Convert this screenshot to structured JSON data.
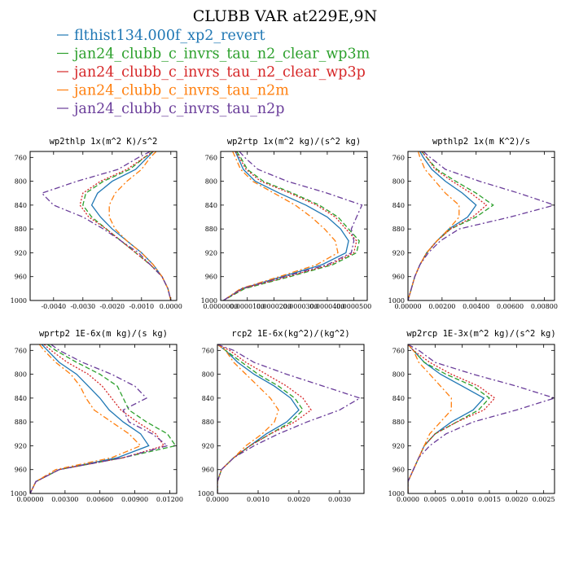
{
  "chart_data": {
    "title": "CLUBB VAR at229E,9N",
    "legend_position": "top",
    "series_styles": [
      {
        "name": "flthist134.000f_xp2_revert",
        "color": "#1f77b4",
        "dash": "solid"
      },
      {
        "name": "jan24_clubb_c_invrs_tau_n2_clear_wp3m",
        "color": "#2ca02c",
        "dash": "dashed"
      },
      {
        "name": "jan24_clubb_c_invrs_tau_n2_clear_wp3p",
        "color": "#d62728",
        "dash": "dotted"
      },
      {
        "name": "jan24_clubb_c_invrs_tau_n2m",
        "color": "#ff7f0e",
        "dash": "dashdot"
      },
      {
        "name": "jan24_clubb_c_invrs_tau_n2p",
        "color": "#6a3d9a",
        "dash": "dashdot"
      }
    ],
    "levels": [
      750,
      760,
      780,
      800,
      820,
      840,
      860,
      880,
      900,
      920,
      940,
      960,
      980,
      1000
    ],
    "panels": [
      {
        "type": "line",
        "title": "wp2thlp  1x(m^2 K)/s^2",
        "xlim": [
          -0.0048,
          0.0002
        ],
        "ylim": [
          750,
          1000
        ],
        "xticks": [
          -0.004,
          -0.003,
          -0.002,
          -0.001,
          0.0
        ],
        "xtick_labels": [
          "-0.0040",
          "-0.0030",
          "-0.0020",
          "-0.0010",
          "0.0000"
        ],
        "yticks": [
          760,
          800,
          840,
          880,
          920,
          960,
          1000
        ],
        "series": [
          {
            "values": [
              -0.0006,
              -0.0008,
              -0.0012,
              -0.002,
              -0.0025,
              -0.0027,
              -0.0024,
              -0.002,
              -0.0015,
              -0.001,
              -0.0006,
              -0.0003,
              -0.0001,
              0.0
            ]
          },
          {
            "values": [
              -0.0006,
              -0.0009,
              -0.0014,
              -0.0023,
              -0.0029,
              -0.003,
              -0.0027,
              -0.0022,
              -0.0017,
              -0.0012,
              -0.0007,
              -0.0003,
              -0.0001,
              0.0
            ]
          },
          {
            "values": [
              -0.0006,
              -0.0009,
              -0.0015,
              -0.0024,
              -0.003,
              -0.0031,
              -0.0028,
              -0.0022,
              -0.0017,
              -0.0012,
              -0.0007,
              -0.0003,
              -0.0001,
              0.0
            ]
          },
          {
            "values": [
              -0.0005,
              -0.0007,
              -0.001,
              -0.0015,
              -0.0019,
              -0.0021,
              -0.0021,
              -0.0019,
              -0.0015,
              -0.001,
              -0.0006,
              -0.0003,
              -0.0001,
              0.0
            ]
          },
          {
            "values": [
              -0.0007,
              -0.0011,
              -0.0018,
              -0.0032,
              -0.0044,
              -0.004,
              -0.003,
              -0.0023,
              -0.0017,
              -0.0011,
              -0.0007,
              -0.0003,
              -0.0001,
              0.0
            ]
          }
        ]
      },
      {
        "type": "line",
        "title": "wp2rtp  1x(m^2 kg)/(s^2 kg)",
        "xlim": [
          0.0,
          5.5e-05
        ],
        "ylim": [
          750,
          1000
        ],
        "xticks": [
          0.0,
          1e-05,
          2e-05,
          3e-05,
          4e-05,
          5e-05
        ],
        "xtick_labels": [
          "0.0000000",
          "0.0000100",
          "0.0000200",
          "0.0000300",
          "0.0000400",
          "0.0000500"
        ],
        "yticks": [
          760,
          800,
          840,
          880,
          920,
          960,
          1000
        ],
        "series": [
          {
            "values": [
              5.5e-06,
              6.5e-06,
              8.5e-06,
              1.3e-05,
              2.2e-05,
              3.2e-05,
              4e-05,
              4.5e-05,
              4.8e-05,
              4.7e-05,
              3.8e-05,
              2.3e-05,
              8e-06,
              1e-06
            ]
          },
          {
            "values": [
              6e-06,
              7.5e-06,
              1e-05,
              1.6e-05,
              2.7e-05,
              3.7e-05,
              4.4e-05,
              4.8e-05,
              5.2e-05,
              5.1e-05,
              4.2e-05,
              2.6e-05,
              9e-06,
              1e-06
            ]
          },
          {
            "values": [
              5.5e-06,
              7e-06,
              9.5e-06,
              1.5e-05,
              2.6e-05,
              3.6e-05,
              4.3e-05,
              4.7e-05,
              5.1e-05,
              5e-05,
              4.1e-05,
              2.5e-05,
              8.5e-06,
              1e-06
            ]
          },
          {
            "values": [
              4.5e-06,
              5.5e-06,
              7.5e-06,
              1.2e-05,
              2e-05,
              2.8e-05,
              3.4e-05,
              3.9e-05,
              4.3e-05,
              4.4e-05,
              3.6e-05,
              2.2e-05,
              7.5e-06,
              1e-06
            ]
          },
          {
            "values": [
              7e-06,
              9e-06,
              1.4e-05,
              2.5e-05,
              4e-05,
              5.3e-05,
              5.1e-05,
              4.9e-05,
              5e-05,
              4.9e-05,
              4e-05,
              2.4e-05,
              8e-06,
              1e-06
            ]
          }
        ]
      },
      {
        "type": "line",
        "title": "wpthlp2  1x(m K^2)/s",
        "xlim": [
          0.0,
          0.0086
        ],
        "ylim": [
          750,
          1000
        ],
        "xticks": [
          0.0,
          0.002,
          0.004,
          0.006,
          0.008
        ],
        "xtick_labels": [
          "0.00000",
          "0.00200",
          "0.00400",
          "0.00600",
          "0.00800"
        ],
        "yticks": [
          760,
          800,
          840,
          880,
          920,
          960,
          1000
        ],
        "series": [
          {
            "values": [
              0.0007,
              0.0009,
              0.0014,
              0.0022,
              0.0032,
              0.004,
              0.0035,
              0.0024,
              0.0017,
              0.0011,
              0.0007,
              0.0004,
              0.0002,
              0.0
            ]
          },
          {
            "values": [
              0.0008,
              0.0011,
              0.0017,
              0.0028,
              0.004,
              0.005,
              0.004,
              0.0025,
              0.0017,
              0.0011,
              0.0007,
              0.0004,
              0.0002,
              0.0
            ]
          },
          {
            "values": [
              0.0008,
              0.0011,
              0.0016,
              0.0026,
              0.0037,
              0.0046,
              0.0038,
              0.0025,
              0.0017,
              0.0011,
              0.0007,
              0.0004,
              0.0002,
              0.0
            ]
          },
          {
            "values": [
              0.0006,
              0.0007,
              0.001,
              0.0016,
              0.0022,
              0.003,
              0.003,
              0.0024,
              0.0017,
              0.0011,
              0.0007,
              0.0004,
              0.0002,
              0.0
            ]
          },
          {
            "values": [
              0.0009,
              0.0013,
              0.0022,
              0.0042,
              0.0065,
              0.0086,
              0.006,
              0.003,
              0.0019,
              0.0012,
              0.0007,
              0.0004,
              0.0002,
              0.0
            ]
          }
        ]
      },
      {
        "type": "line",
        "title": "wprtp2  1E-6x(m kg)/(s kg)",
        "xlim": [
          0.0,
          0.0126
        ],
        "ylim": [
          750,
          1000
        ],
        "xticks": [
          0.0,
          0.003,
          0.006,
          0.009,
          0.012
        ],
        "xtick_labels": [
          "0.00000",
          "0.00300",
          "0.00600",
          "0.00900",
          "0.01200"
        ],
        "yticks": [
          760,
          800,
          840,
          880,
          920,
          960,
          1000
        ],
        "series": [
          {
            "values": [
              0.001,
              0.0015,
              0.0025,
              0.004,
              0.005,
              0.006,
              0.0068,
              0.008,
              0.0095,
              0.0102,
              0.0075,
              0.0025,
              0.0005,
              0.0
            ]
          },
          {
            "values": [
              0.0015,
              0.0022,
              0.004,
              0.006,
              0.0075,
              0.008,
              0.0085,
              0.01,
              0.0118,
              0.0125,
              0.008,
              0.0025,
              0.0005,
              0.0
            ]
          },
          {
            "values": [
              0.0012,
              0.0018,
              0.0032,
              0.005,
              0.0062,
              0.007,
              0.0078,
              0.0092,
              0.0108,
              0.0115,
              0.008,
              0.0025,
              0.0005,
              0.0
            ]
          },
          {
            "values": [
              0.0008,
              0.0012,
              0.0022,
              0.0035,
              0.0043,
              0.0048,
              0.0055,
              0.007,
              0.0085,
              0.0095,
              0.007,
              0.0022,
              0.0005,
              0.0
            ]
          },
          {
            "values": [
              0.0018,
              0.0025,
              0.0045,
              0.007,
              0.009,
              0.01,
              0.008,
              0.0085,
              0.0105,
              0.0118,
              0.008,
              0.0025,
              0.0005,
              0.0
            ]
          }
        ]
      },
      {
        "type": "line",
        "title": "rcp2  1E-6x(kg^2)/(kg^2)",
        "xlim": [
          0.0,
          0.0036
        ],
        "ylim": [
          750,
          1000
        ],
        "xticks": [
          0.0,
          0.001,
          0.002,
          0.003
        ],
        "xtick_labels": [
          "0.0000",
          "0.0010",
          "0.0020",
          "0.0030"
        ],
        "yticks": [
          760,
          800,
          840,
          880,
          920,
          960,
          1000
        ],
        "series": [
          {
            "values": [
              0.0,
              0.0002,
              0.0005,
              0.0009,
              0.0014,
              0.0018,
              0.002,
              0.0017,
              0.0012,
              0.0008,
              0.0004,
              0.0001,
              0.0,
              0.0
            ]
          },
          {
            "values": [
              0.0,
              0.0002,
              0.0006,
              0.001,
              0.0015,
              0.0019,
              0.0021,
              0.0018,
              0.0013,
              0.0008,
              0.0004,
              0.0001,
              0.0,
              0.0
            ]
          },
          {
            "values": [
              0.0,
              0.0003,
              0.0007,
              0.0012,
              0.0017,
              0.0021,
              0.0023,
              0.0019,
              0.0013,
              0.0008,
              0.0004,
              0.0001,
              0.0,
              0.0
            ]
          },
          {
            "values": [
              0.0,
              0.0002,
              0.0004,
              0.0007,
              0.001,
              0.0013,
              0.0015,
              0.0014,
              0.0011,
              0.0007,
              0.0004,
              0.0001,
              0.0,
              0.0
            ]
          },
          {
            "values": [
              0.0,
              0.0004,
              0.0009,
              0.0017,
              0.0026,
              0.0035,
              0.003,
              0.0022,
              0.0015,
              0.0009,
              0.0004,
              0.0001,
              0.0,
              0.0
            ]
          }
        ]
      },
      {
        "type": "line",
        "title": "wp2rcp  1E-3x(m^2 kg)/(s^2 kg)",
        "xlim": [
          0.0,
          0.0027
        ],
        "ylim": [
          750,
          1000
        ],
        "xticks": [
          0.0,
          0.0005,
          0.001,
          0.0015,
          0.002,
          0.0025
        ],
        "xtick_labels": [
          "0.0000",
          "0.0005",
          "0.0010",
          "0.0015",
          "0.0020",
          "0.0025"
        ],
        "yticks": [
          760,
          800,
          840,
          880,
          920,
          960,
          1000
        ],
        "series": [
          {
            "values": [
              0.0,
              0.0001,
              0.0003,
              0.0006,
              0.001,
              0.0014,
              0.0012,
              0.0008,
              0.0005,
              0.0003,
              0.0002,
              0.0001,
              0.0,
              0.0
            ]
          },
          {
            "values": [
              0.0,
              0.0001,
              0.0003,
              0.0007,
              0.0012,
              0.0015,
              0.0013,
              0.0009,
              0.0005,
              0.0003,
              0.0002,
              0.0001,
              0.0,
              0.0
            ]
          },
          {
            "values": [
              0.0,
              0.0001,
              0.0004,
              0.0008,
              0.0013,
              0.0016,
              0.0014,
              0.0009,
              0.0005,
              0.0003,
              0.0002,
              0.0001,
              0.0,
              0.0
            ]
          },
          {
            "values": [
              0.0,
              0.0001,
              0.0002,
              0.0004,
              0.0006,
              0.0008,
              0.0008,
              0.0006,
              0.0004,
              0.0003,
              0.0002,
              0.0001,
              0.0,
              0.0
            ]
          },
          {
            "values": [
              0.0,
              0.0002,
              0.0005,
              0.0012,
              0.002,
              0.0027,
              0.002,
              0.0012,
              0.0007,
              0.0004,
              0.0002,
              0.0001,
              0.0,
              0.0
            ]
          }
        ]
      }
    ]
  }
}
